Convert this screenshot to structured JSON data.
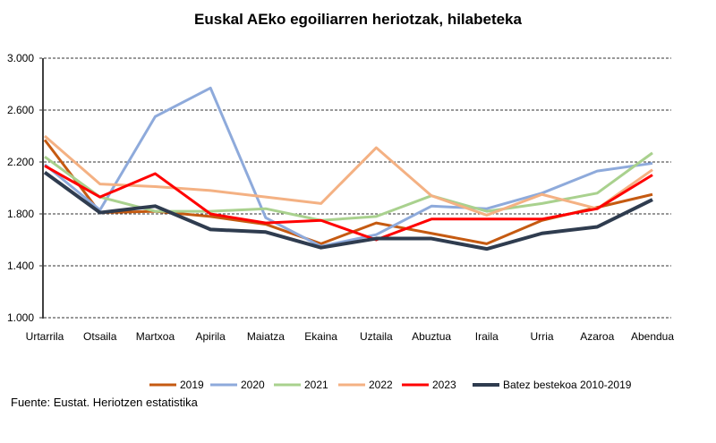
{
  "chart_data": {
    "type": "line",
    "title": "Euskal AEko egoiliarren heriotzak, hilabeteka",
    "xlabel": "",
    "ylabel": "",
    "ylim": [
      1000,
      3000
    ],
    "yticks": [
      "1.000",
      "1.400",
      "1.800",
      "2.200",
      "2.600",
      "3.000"
    ],
    "ytick_values": [
      1000,
      1400,
      1800,
      2200,
      2600,
      3000
    ],
    "grid": true,
    "legend_position": "bottom",
    "categories": [
      "Urtarrila",
      "Otsaila",
      "Martxoa",
      "Apirila",
      "Maiatza",
      "Ekaina",
      "Uztaila",
      "Abuztua",
      "Iraila",
      "Urria",
      "Azaroa",
      "Abendua"
    ],
    "series": [
      {
        "name": "2019",
        "color": "#c55a11",
        "values": [
          2370,
          1810,
          1820,
          1780,
          1720,
          1570,
          1730,
          1650,
          1570,
          1750,
          1850,
          1950
        ]
      },
      {
        "name": "2020",
        "color": "#8eaadb",
        "values": [
          2180,
          1830,
          2550,
          2770,
          1770,
          1550,
          1640,
          1860,
          1840,
          1960,
          2130,
          2190
        ]
      },
      {
        "name": "2021",
        "color": "#a9d18e",
        "values": [
          2240,
          1930,
          1820,
          1820,
          1840,
          1750,
          1780,
          1940,
          1820,
          1880,
          1960,
          2270
        ]
      },
      {
        "name": "2022",
        "color": "#f4b183",
        "values": [
          2400,
          2030,
          2010,
          1980,
          1930,
          1880,
          2310,
          1940,
          1790,
          1950,
          1840,
          2140
        ]
      },
      {
        "name": "2023",
        "color": "#ff0000",
        "values": [
          2170,
          1930,
          2110,
          1800,
          1730,
          1750,
          1600,
          1760,
          1760,
          1760,
          1840,
          2100
        ]
      },
      {
        "name": "Batez bestekoa 2010-2019",
        "color": "#2f3c4f",
        "values": [
          2120,
          1810,
          1860,
          1680,
          1660,
          1540,
          1610,
          1610,
          1530,
          1650,
          1700,
          1910
        ]
      }
    ]
  },
  "source": "Fuente: Eustat. Heriotzen estatistika"
}
